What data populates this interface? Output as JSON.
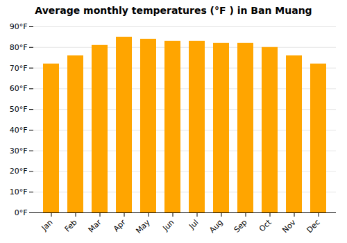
{
  "chart_data": {
    "type": "bar",
    "title": "Average monthly temperatures (°F ) in Ban Muang",
    "categories": [
      "Jan",
      "Feb",
      "Mar",
      "Apr",
      "May",
      "Jun",
      "Jul",
      "Aug",
      "Sep",
      "Oct",
      "Nov",
      "Dec"
    ],
    "values": [
      72,
      76,
      81,
      85,
      84,
      83,
      83,
      82,
      82,
      80,
      76,
      72
    ],
    "color": "#FFA500",
    "ylim": [
      0,
      90
    ],
    "yticks": [
      {
        "value": 0,
        "label": "0°F"
      },
      {
        "value": 10,
        "label": "10°F"
      },
      {
        "value": 20,
        "label": "20°F"
      },
      {
        "value": 30,
        "label": "30°F"
      },
      {
        "value": 40,
        "label": "40°F"
      },
      {
        "value": 50,
        "label": "50°F"
      },
      {
        "value": 60,
        "label": "60°F"
      },
      {
        "value": 70,
        "label": "70°F"
      },
      {
        "value": 80,
        "label": "80°F"
      },
      {
        "value": 90,
        "label": "90°F"
      }
    ],
    "grid": true
  }
}
